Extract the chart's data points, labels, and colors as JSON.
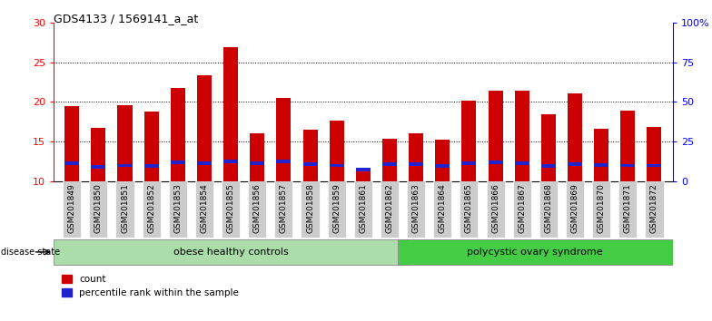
{
  "title": "GDS4133 / 1569141_a_at",
  "samples": [
    "GSM201849",
    "GSM201850",
    "GSM201851",
    "GSM201852",
    "GSM201853",
    "GSM201854",
    "GSM201855",
    "GSM201856",
    "GSM201857",
    "GSM201858",
    "GSM201859",
    "GSM201861",
    "GSM201862",
    "GSM201863",
    "GSM201864",
    "GSM201865",
    "GSM201866",
    "GSM201867",
    "GSM201868",
    "GSM201869",
    "GSM201870",
    "GSM201871",
    "GSM201872"
  ],
  "count_values": [
    19.5,
    16.7,
    19.6,
    18.8,
    21.8,
    23.3,
    26.9,
    16.0,
    20.5,
    16.5,
    17.6,
    11.7,
    15.4,
    16.0,
    15.2,
    20.2,
    21.4,
    21.4,
    18.5,
    21.1,
    16.6,
    18.9,
    16.9
  ],
  "percentile_values": [
    12.3,
    11.8,
    12.0,
    11.9,
    12.4,
    12.3,
    12.5,
    12.3,
    12.5,
    12.2,
    12.0,
    11.5,
    12.2,
    12.2,
    11.9,
    12.3,
    12.4,
    12.3,
    11.9,
    12.2,
    12.1,
    12.0,
    12.0
  ],
  "y_min": 10,
  "y_max": 30,
  "y_ticks": [
    10,
    15,
    20,
    25,
    30
  ],
  "right_y_ticks": [
    0,
    25,
    50,
    75,
    100
  ],
  "right_y_labels": [
    "0",
    "25",
    "50",
    "75",
    "100%"
  ],
  "bar_color": "#cc0000",
  "blue_color": "#2222cc",
  "group1_label": "obese healthy controls",
  "group2_label": "polycystic ovary syndrome",
  "group1_count": 13,
  "group2_count": 10,
  "group1_color": "#aaddaa",
  "group2_color": "#44cc44",
  "disease_state_label": "disease state",
  "legend_count": "count",
  "legend_percentile": "percentile rank within the sample",
  "bg_color": "#ffffff",
  "bar_width": 0.55,
  "tick_label_color": "#cccccc"
}
